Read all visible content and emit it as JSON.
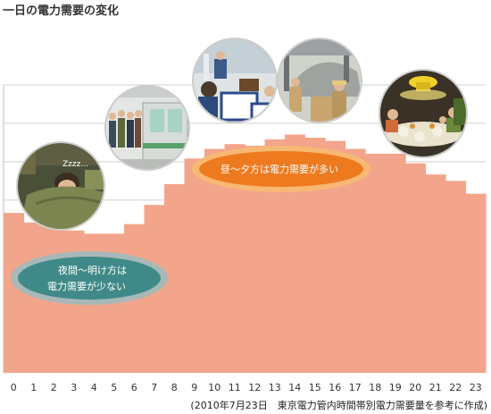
{
  "title": "一日の電力需要の変化",
  "source": "(2010年7月23日　東京電力管内時間帯別電力需要量を参考に作成)",
  "colors": {
    "area": "#f2a58a",
    "grid": "#d0d0d0",
    "night_oval_outer": "#a8b8b8",
    "night_oval_inner": "#3f8a88",
    "day_oval_outer": "#f7b874",
    "day_oval_inner": "#ee7a1f"
  },
  "annotations": {
    "night_line1": "夜間〜明け方は",
    "night_line2": "電力需要が少ない",
    "day": "昼〜夕方は電力需要が多い"
  },
  "illustrations": [
    {
      "name": "sleeping-person-illustration",
      "text": "Zzzz..."
    },
    {
      "name": "train-commuters-illustration"
    },
    {
      "name": "office-workers-illustration"
    },
    {
      "name": "factory-workers-illustration"
    },
    {
      "name": "family-dinner-illustration"
    }
  ],
  "chart_data": {
    "type": "area",
    "title": "一日の電力需要の変化",
    "xlabel": "",
    "ylabel": "",
    "x": [
      0,
      1,
      2,
      3,
      4,
      5,
      6,
      7,
      8,
      9,
      10,
      11,
      12,
      13,
      14,
      15,
      16,
      17,
      18,
      19,
      20,
      21,
      22,
      23
    ],
    "x_tick_labels": [
      "0",
      "1",
      "2",
      "3",
      "4",
      "5",
      "6",
      "7",
      "8",
      "9",
      "10",
      "11",
      "12",
      "13",
      "14",
      "15",
      "16",
      "17",
      "18",
      "19",
      "20",
      "21",
      "22",
      "23"
    ],
    "values": [
      100,
      94,
      91,
      89,
      87,
      87,
      93,
      105,
      118,
      134,
      140,
      143,
      142,
      146,
      149,
      147,
      145,
      140,
      137,
      137,
      131,
      124,
      120,
      112
    ],
    "value_scale": "relative (no y-axis values printed)",
    "ylim": [
      0,
      180
    ],
    "grid": true,
    "step": true
  }
}
